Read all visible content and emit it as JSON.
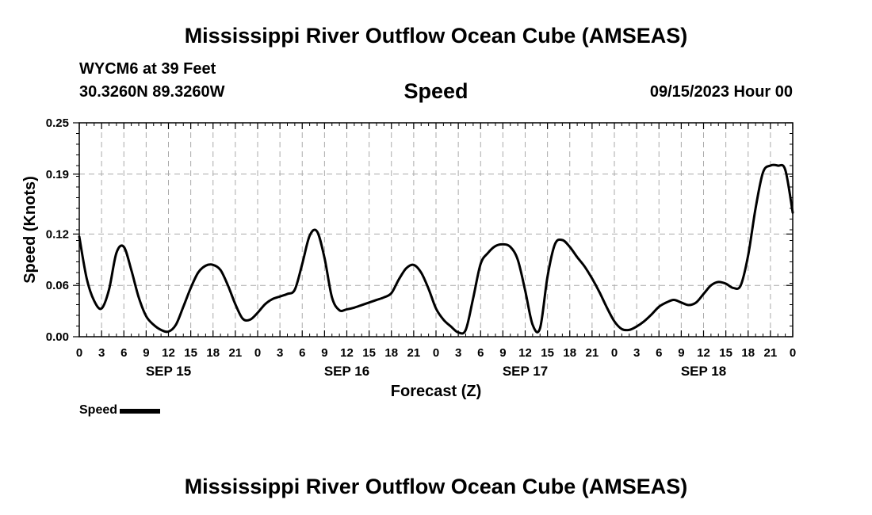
{
  "header": {
    "title": "Mississippi River Outflow Ocean Cube (AMSEAS)",
    "station_line": "WYCM6 at 39 Feet",
    "coords_line": "30.3260N  89.3260W",
    "date_line": "09/15/2023 Hour 00"
  },
  "footer": {
    "title": "Mississippi River Outflow Ocean Cube (AMSEAS)"
  },
  "legend": {
    "label": "Speed"
  },
  "chart_data": {
    "type": "line",
    "title": "Speed",
    "xlabel": "Forecast (Z)",
    "ylabel": "Speed (Knots)",
    "xlim": [
      0,
      96
    ],
    "ylim": [
      0,
      0.25
    ],
    "grid": true,
    "yticks": [
      0.0,
      0.06,
      0.12,
      0.19,
      0.25
    ],
    "ytick_labels": [
      "0.00",
      "0.06",
      "0.12",
      "0.19",
      "0.25"
    ],
    "xtick_hours": [
      0,
      3,
      6,
      9,
      12,
      15,
      18,
      21,
      24,
      27,
      30,
      33,
      36,
      39,
      42,
      45,
      48,
      51,
      54,
      57,
      60,
      63,
      66,
      69,
      72,
      75,
      78,
      81,
      84,
      87,
      90,
      93,
      96
    ],
    "xtick_labels": [
      "0",
      "3",
      "6",
      "9",
      "12",
      "15",
      "18",
      "21",
      "0",
      "3",
      "6",
      "9",
      "12",
      "15",
      "18",
      "21",
      "0",
      "3",
      "6",
      "9",
      "12",
      "15",
      "18",
      "21",
      "0",
      "3",
      "6",
      "9",
      "12",
      "15",
      "18",
      "21",
      "0"
    ],
    "day_labels": [
      {
        "hour": 12,
        "label": "SEP 15"
      },
      {
        "hour": 36,
        "label": "SEP 16"
      },
      {
        "hour": 60,
        "label": "SEP 17"
      },
      {
        "hour": 84,
        "label": "SEP 18"
      }
    ],
    "series": [
      {
        "name": "Speed",
        "color": "#000000",
        "x": [
          0,
          1,
          2,
          3,
          4,
          5,
          6,
          7,
          8,
          9,
          10,
          11,
          12,
          13,
          14,
          15,
          16,
          17,
          18,
          19,
          20,
          21,
          22,
          23,
          24,
          25,
          26,
          27,
          28,
          29,
          30,
          31,
          32,
          33,
          34,
          35,
          36,
          37,
          38,
          39,
          40,
          41,
          42,
          43,
          44,
          45,
          46,
          47,
          48,
          49,
          50,
          51,
          52,
          53,
          54,
          55,
          56,
          57,
          58,
          59,
          60,
          61,
          62,
          63,
          64,
          65,
          66,
          67,
          68,
          69,
          70,
          71,
          72,
          73,
          74,
          75,
          76,
          77,
          78,
          79,
          80,
          81,
          82,
          83,
          84,
          85,
          86,
          87,
          88,
          89,
          90,
          91,
          92,
          93,
          94,
          95,
          96
        ],
        "values": [
          0.117,
          0.068,
          0.042,
          0.033,
          0.055,
          0.098,
          0.105,
          0.078,
          0.046,
          0.024,
          0.014,
          0.008,
          0.006,
          0.014,
          0.035,
          0.057,
          0.075,
          0.083,
          0.084,
          0.078,
          0.06,
          0.038,
          0.021,
          0.02,
          0.028,
          0.038,
          0.044,
          0.047,
          0.05,
          0.055,
          0.085,
          0.118,
          0.123,
          0.092,
          0.046,
          0.031,
          0.032,
          0.034,
          0.037,
          0.04,
          0.043,
          0.046,
          0.051,
          0.067,
          0.08,
          0.084,
          0.075,
          0.056,
          0.033,
          0.02,
          0.012,
          0.005,
          0.008,
          0.045,
          0.085,
          0.098,
          0.106,
          0.108,
          0.105,
          0.09,
          0.054,
          0.014,
          0.01,
          0.07,
          0.108,
          0.113,
          0.105,
          0.093,
          0.082,
          0.068,
          0.052,
          0.034,
          0.018,
          0.009,
          0.008,
          0.012,
          0.018,
          0.026,
          0.035,
          0.04,
          0.043,
          0.04,
          0.037,
          0.04,
          0.05,
          0.06,
          0.064,
          0.062,
          0.057,
          0.06,
          0.095,
          0.15,
          0.192,
          0.2,
          0.2,
          0.195,
          0.145
        ]
      }
    ]
  }
}
